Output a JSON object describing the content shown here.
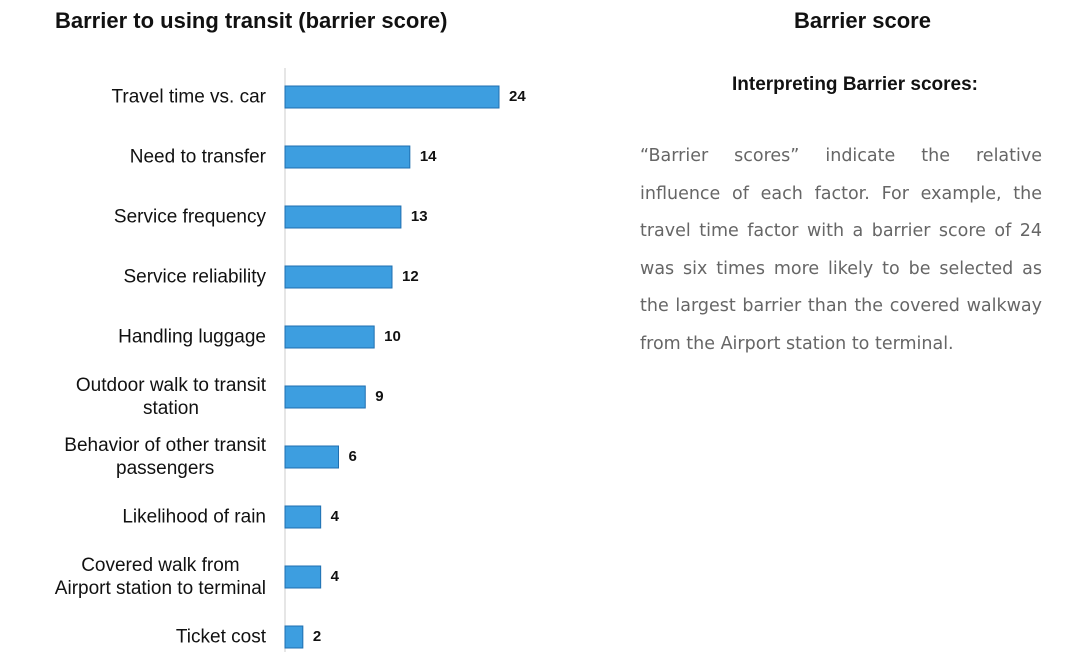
{
  "chart_data": {
    "type": "bar",
    "orientation": "horizontal",
    "title": "Barrier to using transit (barrier score)",
    "categories": [
      "Travel time vs. car",
      "Need to transfer",
      "Service frequency",
      "Service reliability",
      "Handling luggage",
      "Outdoor walk to transit\nstation",
      "Behavior of other transit\npassengers",
      "Likelihood of rain",
      "Covered walk from\nAirport station to terminal",
      "Ticket cost"
    ],
    "values": [
      24,
      14,
      13,
      12,
      10,
      9,
      6,
      4,
      4,
      2
    ],
    "color": "#3d9ee0",
    "grid": false
  },
  "panel": {
    "title": "Barrier score",
    "subtitle": "Interpreting Barrier scores:",
    "text": "“Barrier scores” indicate the relative influence of each factor. For example, the travel time factor with a barrier score of 24 was six times more likely to be selected as the largest barrier than the covered walkway from the Airport station to terminal."
  }
}
